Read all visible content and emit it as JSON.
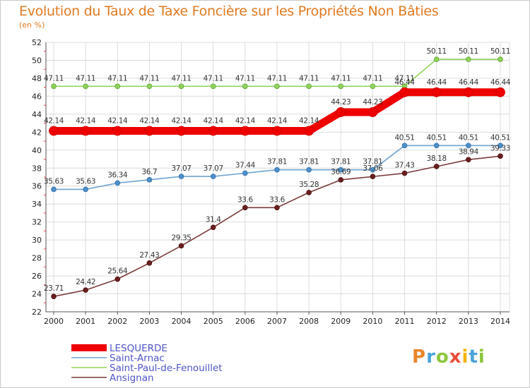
{
  "title": "Evolution du Taux de Taxe Foncière sur les Propriétés Non Bâties",
  "subtitle": "(en %)",
  "logo": {
    "text": "Proxiti",
    "colors": [
      "#e9862b",
      "#4aa3d8",
      "#8cc63f",
      "#e94e3c",
      "#f4b400",
      "#4aa3d8",
      "#8cc63f"
    ]
  },
  "chart_data": {
    "type": "line",
    "title": "Evolution du Taux de Taxe Foncière sur les Propriétés Non Bâties",
    "ylabel": "(en %)",
    "xlabel": "",
    "x": [
      "2000",
      "2001",
      "2002",
      "2003",
      "2004",
      "2005",
      "2006",
      "2007",
      "2008",
      "2009",
      "2010",
      "2011",
      "2012",
      "2013",
      "2014"
    ],
    "ylim": [
      22,
      52
    ],
    "yticks": [
      "22",
      "24",
      "26",
      "28",
      "30",
      "32",
      "34",
      "36",
      "38",
      "40",
      "42",
      "44",
      "46",
      "48",
      "50",
      "52"
    ],
    "grid": true,
    "legend_position": "bottom-left",
    "series": [
      {
        "name": "LESQUERDE",
        "color": "#ee0000",
        "values": [
          42.14,
          42.14,
          42.14,
          42.14,
          42.14,
          42.14,
          42.14,
          42.14,
          42.14,
          44.23,
          44.23,
          46.44,
          46.44,
          46.44,
          46.44
        ],
        "labels": [
          "42.14",
          "42.14",
          "42.14",
          "42.14",
          "42.14",
          "42.14",
          "42.14",
          "42.14",
          "42.14",
          "44.23",
          "44.23",
          "46.44",
          "46.44",
          "46.44",
          "46.44"
        ]
      },
      {
        "name": "Saint-Arnac",
        "color": "#6fa3cf",
        "values": [
          35.63,
          35.63,
          36.34,
          36.7,
          37.07,
          37.07,
          37.44,
          37.81,
          37.81,
          37.81,
          37.81,
          40.51,
          40.51,
          40.51,
          40.51
        ],
        "labels": [
          "35.63",
          "35.63",
          "36.34",
          "36.7",
          "37.07",
          "37.07",
          "37.44",
          "37.81",
          "37.81",
          "37.81",
          "37.81",
          "40.51",
          "40.51",
          "40.51",
          "40.51"
        ]
      },
      {
        "name": "Saint-Paul-de-Fenouillet",
        "color": "#8fd35a",
        "values": [
          47.11,
          47.11,
          47.11,
          47.11,
          47.11,
          47.11,
          47.11,
          47.11,
          47.11,
          47.11,
          47.11,
          47.11,
          50.11,
          50.11,
          50.11
        ],
        "labels": [
          "47.11",
          "47.11",
          "47.11",
          "47.11",
          "47.11",
          "47.11",
          "47.11",
          "47.11",
          "47.11",
          "47.11",
          "47.11",
          "47.11",
          "50.11",
          "50.11",
          "50.11"
        ]
      },
      {
        "name": "Ansignan",
        "color": "#7a3a3a",
        "values": [
          23.71,
          24.42,
          25.64,
          27.43,
          29.35,
          31.4,
          33.6,
          33.6,
          35.28,
          36.69,
          37.06,
          37.43,
          38.18,
          38.94,
          39.33
        ],
        "labels": [
          "23.71",
          "24.42",
          "25.64",
          "27.43",
          "29.35",
          "31.4",
          "33.6",
          "33.6",
          "35.28",
          "36.69",
          "37.06",
          "37.43",
          "38.18",
          "38.94",
          "39.33"
        ]
      }
    ]
  }
}
